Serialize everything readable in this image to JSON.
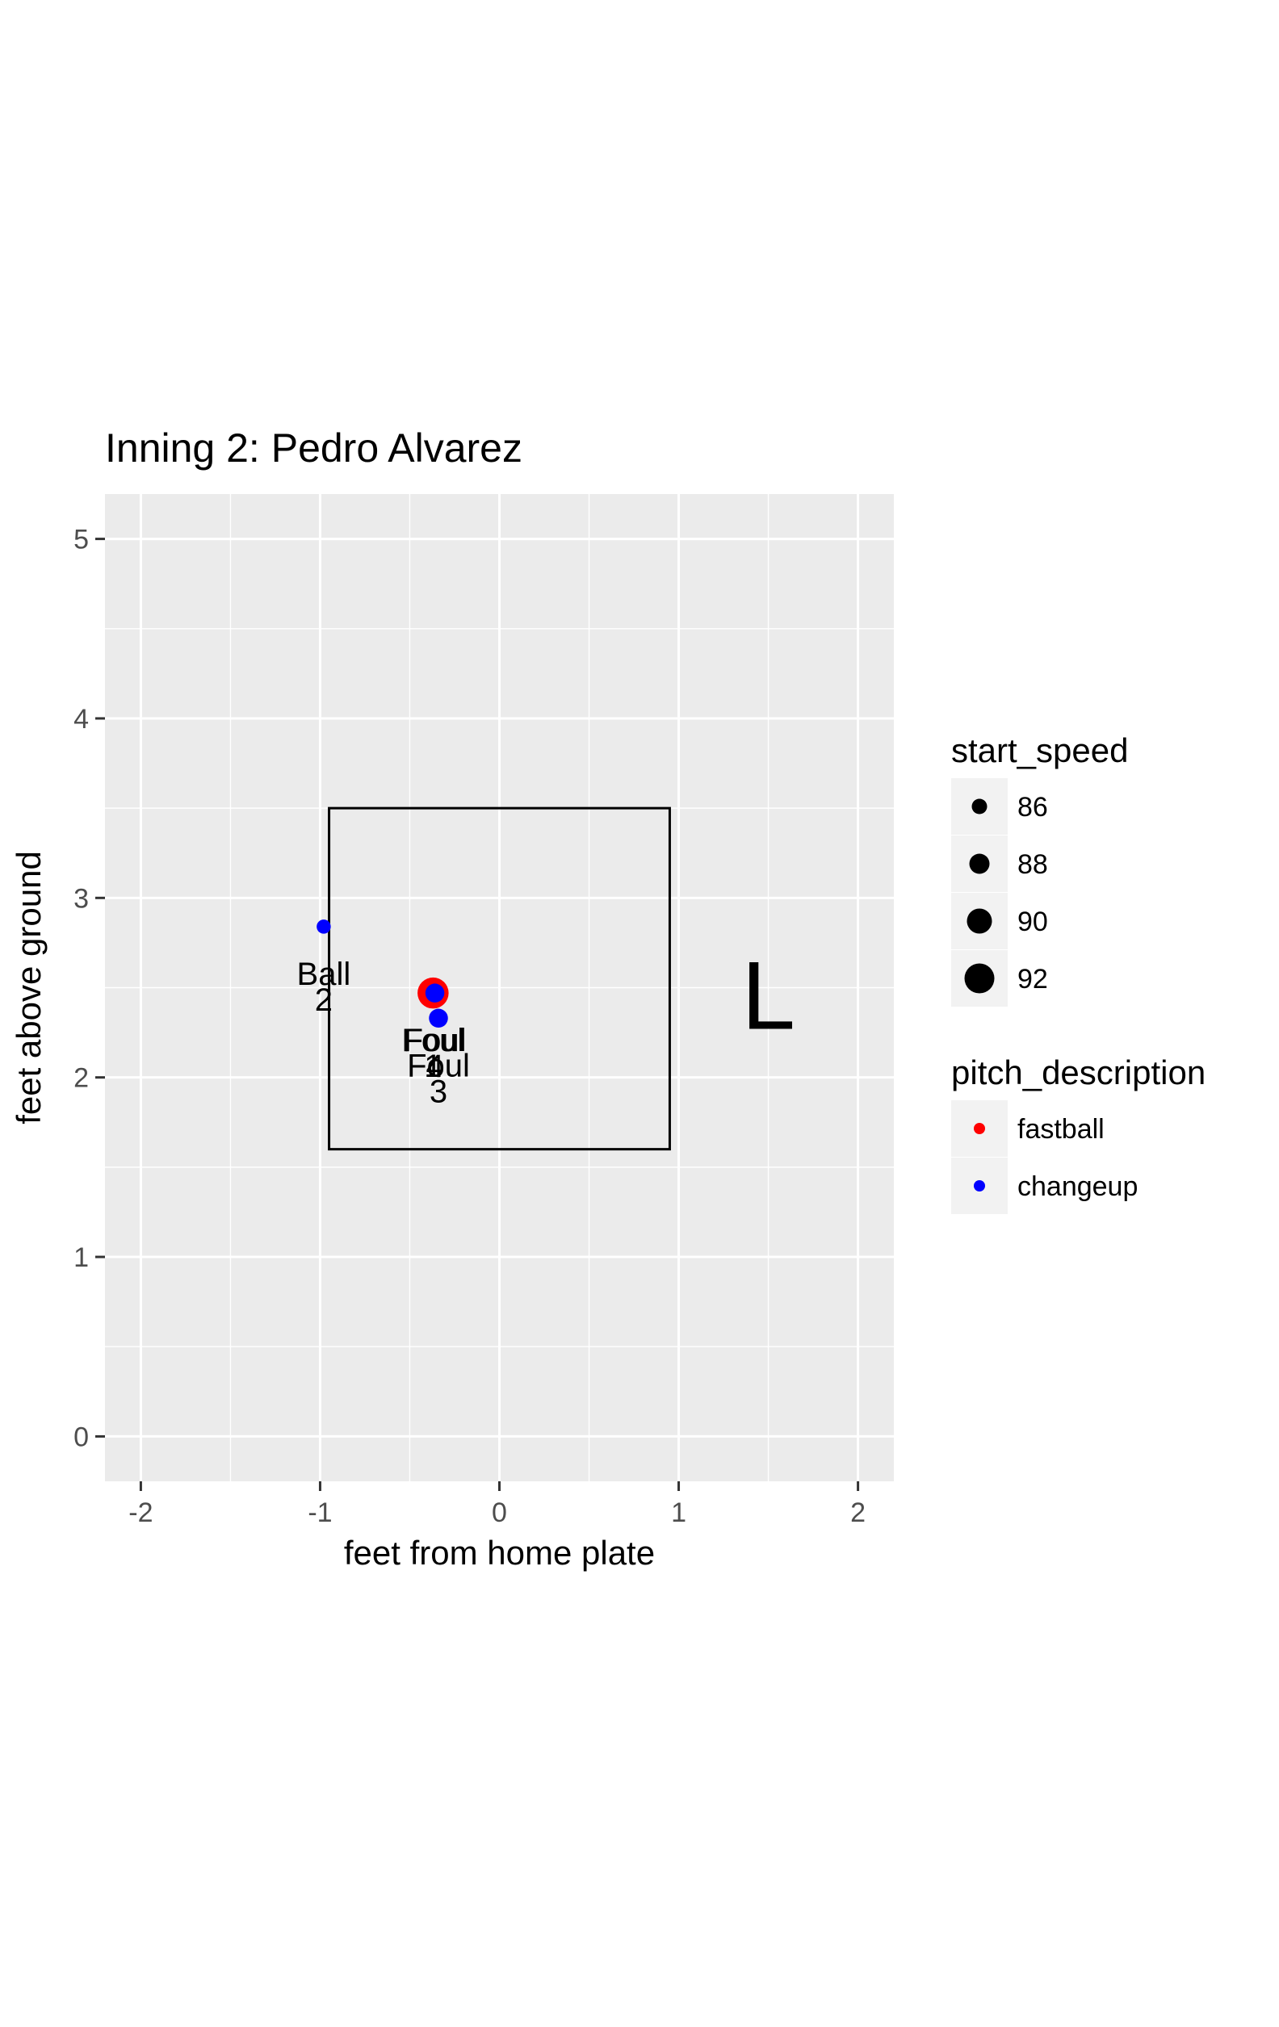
{
  "chart_data": {
    "type": "scatter",
    "title": "Inning 2: Pedro Alvarez",
    "xlabel": "feet from home plate",
    "ylabel": "feet above ground",
    "xlim": [
      -2.2,
      2.2
    ],
    "ylim": [
      -0.25,
      5.25
    ],
    "x_ticks": [
      -2,
      -1,
      0,
      1,
      2
    ],
    "x_tick_labels": [
      "-2",
      "-1",
      "0",
      "1",
      "2"
    ],
    "y_ticks": [
      0,
      1,
      2,
      3,
      4,
      5
    ],
    "y_tick_labels": [
      "0",
      "1",
      "2",
      "3",
      "4",
      "5"
    ],
    "grid": true,
    "strike_zone": {
      "x": [
        -0.95,
        0.95
      ],
      "y": [
        1.6,
        3.5
      ]
    },
    "batter_side": "L",
    "colors": {
      "fastball": "#ff0000",
      "changeup": "#0000ff",
      "panel": "#ebebeb",
      "grid": "#ffffff"
    },
    "points": [
      {
        "x": -0.98,
        "y": 2.84,
        "start_speed": 85.5,
        "pitch_description": "changeup",
        "label": "Ball",
        "number": "2"
      },
      {
        "x": -0.37,
        "y": 2.47,
        "start_speed": 92.5,
        "pitch_description": "fastball",
        "label": "Foul",
        "number": "1"
      },
      {
        "x": -0.36,
        "y": 2.47,
        "start_speed": 87.5,
        "pitch_description": "changeup",
        "label": "Foul",
        "number": "4"
      },
      {
        "x": -0.34,
        "y": 2.33,
        "start_speed": 87.5,
        "pitch_description": "changeup",
        "label": "Foul",
        "number": "3"
      }
    ],
    "legend": {
      "position": "right",
      "size": {
        "title": "start_speed",
        "entries": [
          {
            "label": "86",
            "value": 86
          },
          {
            "label": "88",
            "value": 88
          },
          {
            "label": "90",
            "value": 90
          },
          {
            "label": "92",
            "value": 92
          }
        ]
      },
      "color": {
        "title": "pitch_description",
        "entries": [
          {
            "label": "fastball",
            "color": "#ff0000"
          },
          {
            "label": "changeup",
            "color": "#0000ff"
          }
        ]
      }
    }
  }
}
